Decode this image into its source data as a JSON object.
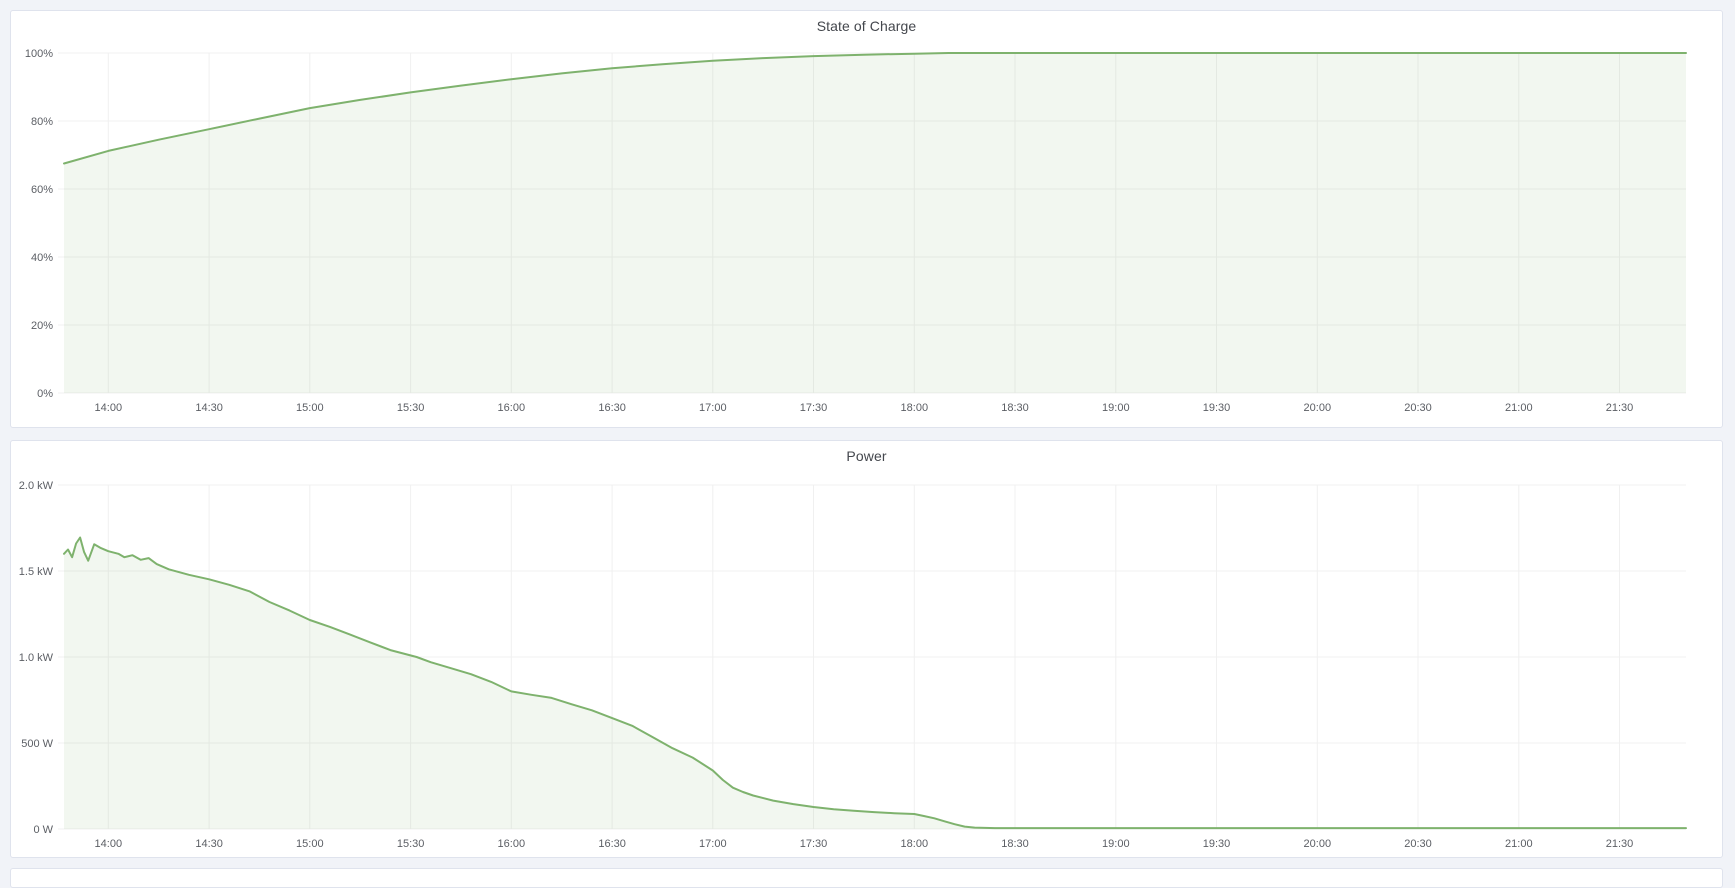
{
  "page": {
    "background_color": "#f1f3f8",
    "panel_background": "#ffffff",
    "panel_border_color": "#dfe3ed",
    "grid_color": "#f0f0f0",
    "tick_text_color": "#5b5e64",
    "title_text_color": "#44474d",
    "accent_green": "#7eb26d"
  },
  "panels": [
    {
      "title": "State of Charge"
    },
    {
      "title": "Power"
    },
    {
      "title": ""
    }
  ],
  "chart_data": [
    {
      "type": "area",
      "title": "State of Charge",
      "xlabel": "",
      "ylabel": "",
      "legend": "none",
      "grid": true,
      "x_ticks": [
        "14:00",
        "14:30",
        "15:00",
        "15:30",
        "16:00",
        "16:30",
        "17:00",
        "17:30",
        "18:00",
        "18:30",
        "19:00",
        "19:30",
        "20:00",
        "20:30",
        "21:00",
        "21:30"
      ],
      "x_tick_hours": [
        14,
        14.5,
        15,
        15.5,
        16,
        16.5,
        17,
        17.5,
        18,
        18.5,
        19,
        19.5,
        20,
        20.5,
        21,
        21.5
      ],
      "x_range_hours": [
        13.78,
        21.83
      ],
      "y_ticks": [
        "0%",
        "20%",
        "40%",
        "60%",
        "80%",
        "100%"
      ],
      "y_tick_values": [
        0,
        20,
        40,
        60,
        80,
        100
      ],
      "ylim": [
        0,
        100
      ],
      "line_color": "#7eb26d",
      "fill_color": "rgba(126,178,109,0.10)",
      "series": [
        {
          "name": "State of Charge",
          "unit": "%",
          "points": [
            [
              13.78,
              67.5
            ],
            [
              14.0,
              71.2
            ],
            [
              14.25,
              74.5
            ],
            [
              14.5,
              77.6
            ],
            [
              14.75,
              80.7
            ],
            [
              15.0,
              83.8
            ],
            [
              15.25,
              86.2
            ],
            [
              15.5,
              88.4
            ],
            [
              15.75,
              90.4
            ],
            [
              16.0,
              92.3
            ],
            [
              16.25,
              94.0
            ],
            [
              16.5,
              95.5
            ],
            [
              16.75,
              96.7
            ],
            [
              17.0,
              97.7
            ],
            [
              17.25,
              98.5
            ],
            [
              17.5,
              99.1
            ],
            [
              17.75,
              99.5
            ],
            [
              18.0,
              99.8
            ],
            [
              18.17,
              100
            ],
            [
              18.5,
              100
            ],
            [
              19.0,
              100
            ],
            [
              19.5,
              100
            ],
            [
              20.0,
              100
            ],
            [
              20.5,
              100
            ],
            [
              21.0,
              100
            ],
            [
              21.5,
              100
            ],
            [
              21.83,
              100
            ]
          ]
        }
      ]
    },
    {
      "type": "area",
      "title": "Power",
      "xlabel": "",
      "ylabel": "",
      "legend": "none",
      "grid": true,
      "x_ticks": [
        "14:00",
        "14:30",
        "15:00",
        "15:30",
        "16:00",
        "16:30",
        "17:00",
        "17:30",
        "18:00",
        "18:30",
        "19:00",
        "19:30",
        "20:00",
        "20:30",
        "21:00",
        "21:30"
      ],
      "x_tick_hours": [
        14,
        14.5,
        15,
        15.5,
        16,
        16.5,
        17,
        17.5,
        18,
        18.5,
        19,
        19.5,
        20,
        20.5,
        21,
        21.5
      ],
      "x_range_hours": [
        13.78,
        21.83
      ],
      "y_ticks": [
        "0 W",
        "500 W",
        "1.0 kW",
        "1.5 kW",
        "2.0 kW"
      ],
      "y_tick_values": [
        0,
        500,
        1000,
        1500,
        2000
      ],
      "ylim": [
        0,
        2000
      ],
      "line_color": "#7eb26d",
      "fill_color": "rgba(126,178,109,0.10)",
      "series": [
        {
          "name": "Power",
          "unit": "W",
          "points": [
            [
              13.78,
              1600
            ],
            [
              13.8,
              1625
            ],
            [
              13.82,
              1580
            ],
            [
              13.84,
              1660
            ],
            [
              13.86,
              1695
            ],
            [
              13.88,
              1610
            ],
            [
              13.9,
              1560
            ],
            [
              13.93,
              1655
            ],
            [
              13.96,
              1635
            ],
            [
              14.0,
              1615
            ],
            [
              14.05,
              1600
            ],
            [
              14.08,
              1580
            ],
            [
              14.12,
              1592
            ],
            [
              14.16,
              1565
            ],
            [
              14.2,
              1575
            ],
            [
              14.24,
              1540
            ],
            [
              14.3,
              1510
            ],
            [
              14.4,
              1478
            ],
            [
              14.5,
              1452
            ],
            [
              14.6,
              1420
            ],
            [
              14.7,
              1382
            ],
            [
              14.8,
              1320
            ],
            [
              14.9,
              1270
            ],
            [
              15.0,
              1215
            ],
            [
              15.1,
              1175
            ],
            [
              15.2,
              1130
            ],
            [
              15.3,
              1085
            ],
            [
              15.4,
              1040
            ],
            [
              15.53,
              1000
            ],
            [
              15.6,
              970
            ],
            [
              15.7,
              935
            ],
            [
              15.8,
              900
            ],
            [
              15.9,
              855
            ],
            [
              16.0,
              800
            ],
            [
              16.1,
              780
            ],
            [
              16.2,
              762
            ],
            [
              16.3,
              725
            ],
            [
              16.4,
              690
            ],
            [
              16.5,
              645
            ],
            [
              16.6,
              600
            ],
            [
              16.7,
              535
            ],
            [
              16.8,
              470
            ],
            [
              16.9,
              415
            ],
            [
              17.0,
              340
            ],
            [
              17.05,
              285
            ],
            [
              17.1,
              240
            ],
            [
              17.15,
              215
            ],
            [
              17.2,
              195
            ],
            [
              17.3,
              165
            ],
            [
              17.4,
              145
            ],
            [
              17.5,
              128
            ],
            [
              17.6,
              115
            ],
            [
              17.7,
              106
            ],
            [
              17.8,
              98
            ],
            [
              17.9,
              92
            ],
            [
              18.0,
              87
            ],
            [
              18.05,
              75
            ],
            [
              18.1,
              62
            ],
            [
              18.15,
              45
            ],
            [
              18.2,
              28
            ],
            [
              18.25,
              14
            ],
            [
              18.3,
              8
            ],
            [
              18.4,
              5
            ],
            [
              18.6,
              5
            ],
            [
              19.0,
              5
            ],
            [
              19.5,
              5
            ],
            [
              20.0,
              5
            ],
            [
              20.5,
              5
            ],
            [
              21.0,
              5
            ],
            [
              21.5,
              5
            ],
            [
              21.83,
              5
            ]
          ]
        }
      ]
    }
  ]
}
